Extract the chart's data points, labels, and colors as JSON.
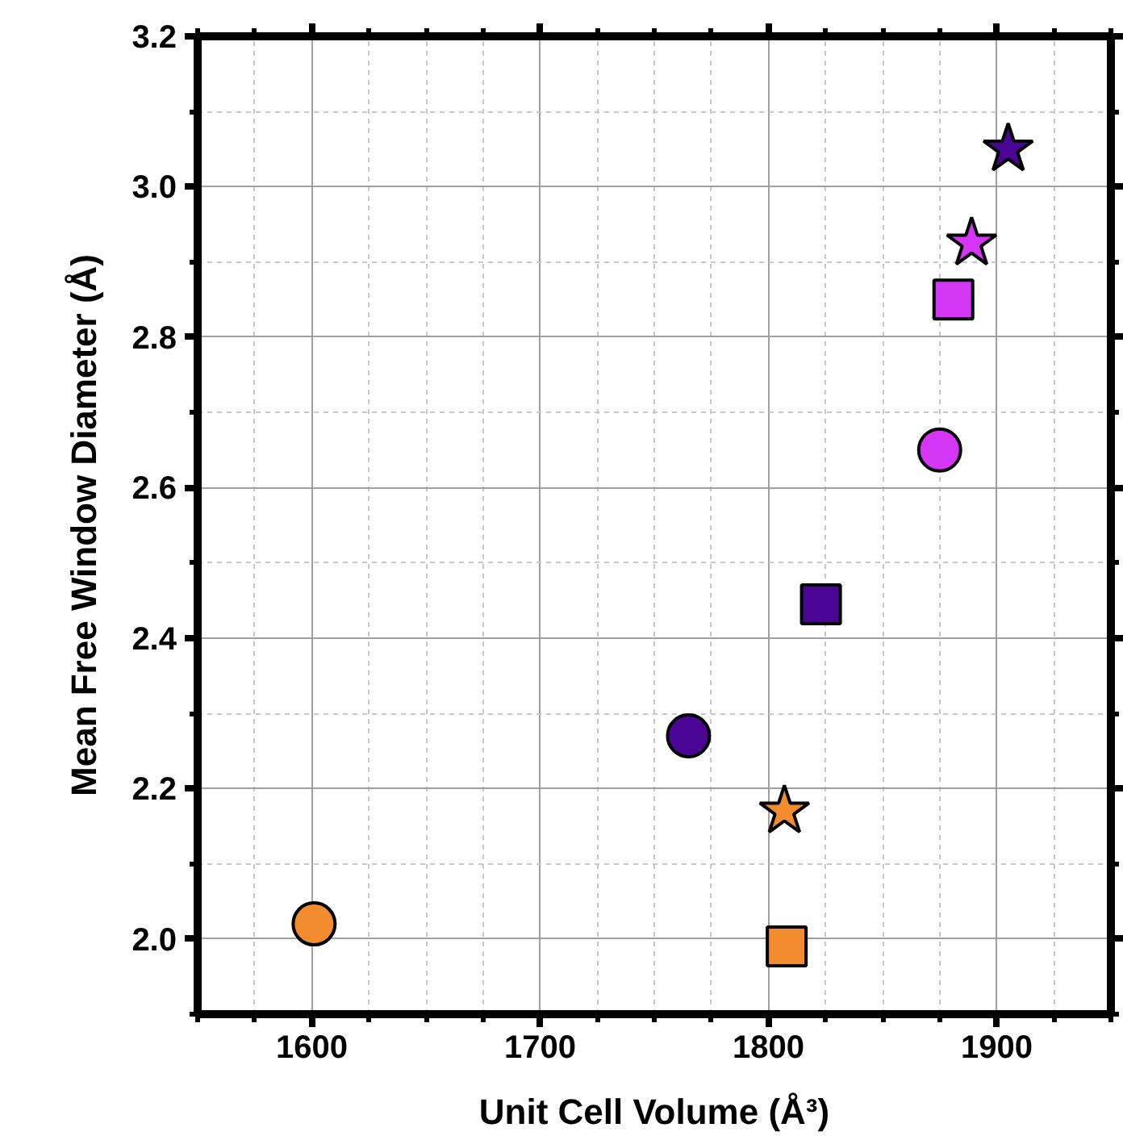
{
  "chart_data": {
    "type": "scatter",
    "xlabel": "Unit Cell Volume (Å³)",
    "ylabel": "Mean Free Window Diameter (Å)",
    "xlim": [
      1550,
      1950
    ],
    "ylim": [
      1.9,
      3.2
    ],
    "xticks": [
      1600,
      1700,
      1800,
      1900
    ],
    "yticks": [
      {
        "value": 2.0,
        "label": "2.0"
      },
      {
        "value": 2.2,
        "label": "2.2"
      },
      {
        "value": 2.4,
        "label": "2.4"
      },
      {
        "value": 2.6,
        "label": "2.6"
      },
      {
        "value": 2.8,
        "label": "2.8"
      },
      {
        "value": 3.0,
        "label": "3.0"
      },
      {
        "value": 3.2,
        "label": "3.2"
      }
    ],
    "grid": true,
    "series": [
      {
        "color": "#f28c2e",
        "marker": "circle",
        "x": [
          1601
        ],
        "values": [
          2.02
        ]
      },
      {
        "color": "#f28c2e",
        "marker": "square",
        "x": [
          1808
        ],
        "values": [
          1.99
        ]
      },
      {
        "color": "#f28c2e",
        "marker": "star",
        "x": [
          1807
        ],
        "values": [
          2.17
        ]
      },
      {
        "color": "#4b0595",
        "marker": "circle",
        "x": [
          1765
        ],
        "values": [
          2.27
        ]
      },
      {
        "color": "#4b0595",
        "marker": "square",
        "x": [
          1823
        ],
        "values": [
          2.445
        ]
      },
      {
        "color": "#4b0595",
        "marker": "star",
        "x": [
          1905
        ],
        "values": [
          3.05
        ]
      },
      {
        "color": "#d535f5",
        "marker": "circle",
        "x": [
          1875
        ],
        "values": [
          2.65
        ]
      },
      {
        "color": "#d535f5",
        "marker": "square",
        "x": [
          1881
        ],
        "values": [
          2.85
        ]
      },
      {
        "color": "#d535f5",
        "marker": "star",
        "x": [
          1889
        ],
        "values": [
          2.925
        ]
      }
    ]
  }
}
